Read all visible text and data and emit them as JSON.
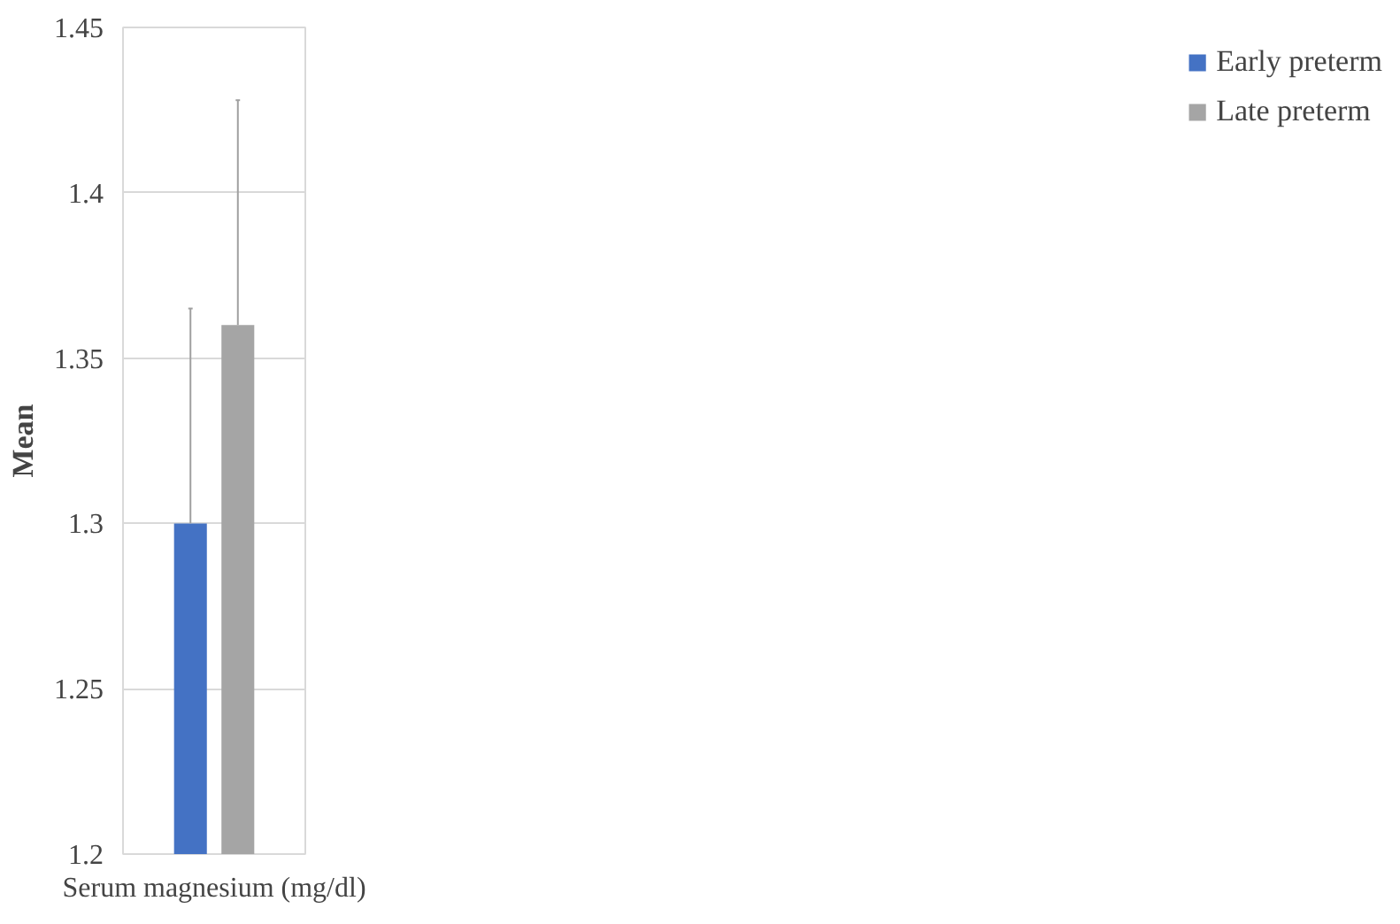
{
  "chart_data": {
    "type": "bar",
    "ylabel": "Mean",
    "categories": [
      "Serum magnesium (mg/dl)"
    ],
    "series": [
      {
        "name": "Early preterm",
        "color": "#4472c4",
        "values": [
          1.3
        ],
        "errors": [
          [
            1.3,
            1.365
          ]
        ]
      },
      {
        "name": "Late preterm",
        "color": "#a5a5a5",
        "values": [
          1.36
        ],
        "errors": [
          [
            1.36,
            1.428
          ]
        ]
      }
    ],
    "ylim": [
      1.2,
      1.45
    ],
    "yticks": [
      1.2,
      1.25,
      1.3,
      1.35,
      1.4,
      1.45
    ],
    "grid": "y",
    "legend": "right"
  }
}
